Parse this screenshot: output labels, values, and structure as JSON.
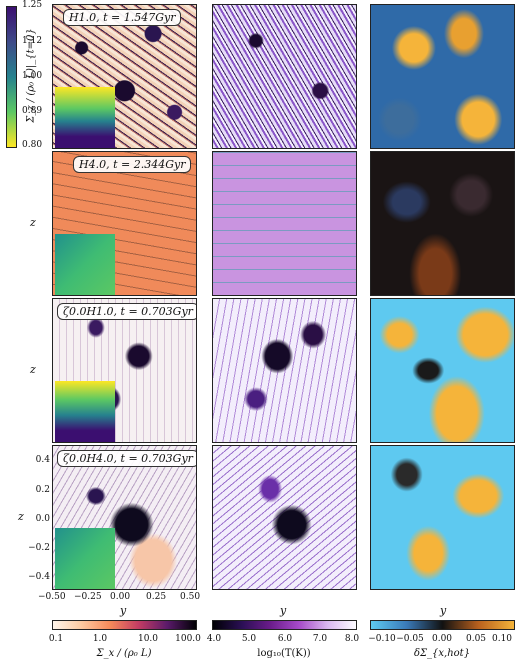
{
  "panel_titles": {
    "r1": "H1.0, t = 1.547Gyr",
    "r2": "H4.0, t = 2.344Gyr",
    "r3": "ζ0.0H1.0, t = 0.703Gyr",
    "r4": "ζ0.0H4.0, t = 0.703Gyr"
  },
  "inset_colorbar": {
    "label": "Σ_z / (ρ₀ L)|_{t=0}",
    "ticks": [
      "1.25",
      "1.12",
      "1.00",
      "0.89",
      "0.80"
    ]
  },
  "axes": {
    "z_label": "z",
    "y_label": "y",
    "x_ticks": [
      "−0.50",
      "−0.25",
      "0.00",
      "0.25",
      "0.50"
    ],
    "z_ticks": [
      "0.4",
      "0.2",
      "0.0",
      "−0.2",
      "−0.4"
    ]
  },
  "colorbars": {
    "col1": {
      "label": "Σ_x / (ρ₀ L)",
      "ticks": [
        "0.1",
        "1.0",
        "10.0",
        "100.0"
      ]
    },
    "col2": {
      "label": "log₁₀(T(K))",
      "ticks": [
        "4.0",
        "5.0",
        "6.0",
        "7.0",
        "8.0"
      ]
    },
    "col3": {
      "label": "δΣ_{x,hot}",
      "ticks": [
        "−0.10",
        "−0.05",
        "0.00",
        "0.05",
        "0.10"
      ]
    }
  },
  "colors": {
    "density_low": "#fbe3cf",
    "density_mid": "#f08a5a",
    "density_high": "#1a0a2e",
    "temp_low": "#0a0614",
    "temp_mid": "#a64ac9",
    "temp_high": "#f2efff",
    "diff_neg": "#5ec9f0",
    "diff_zero": "#111111",
    "diff_pos": "#f5b43a"
  }
}
